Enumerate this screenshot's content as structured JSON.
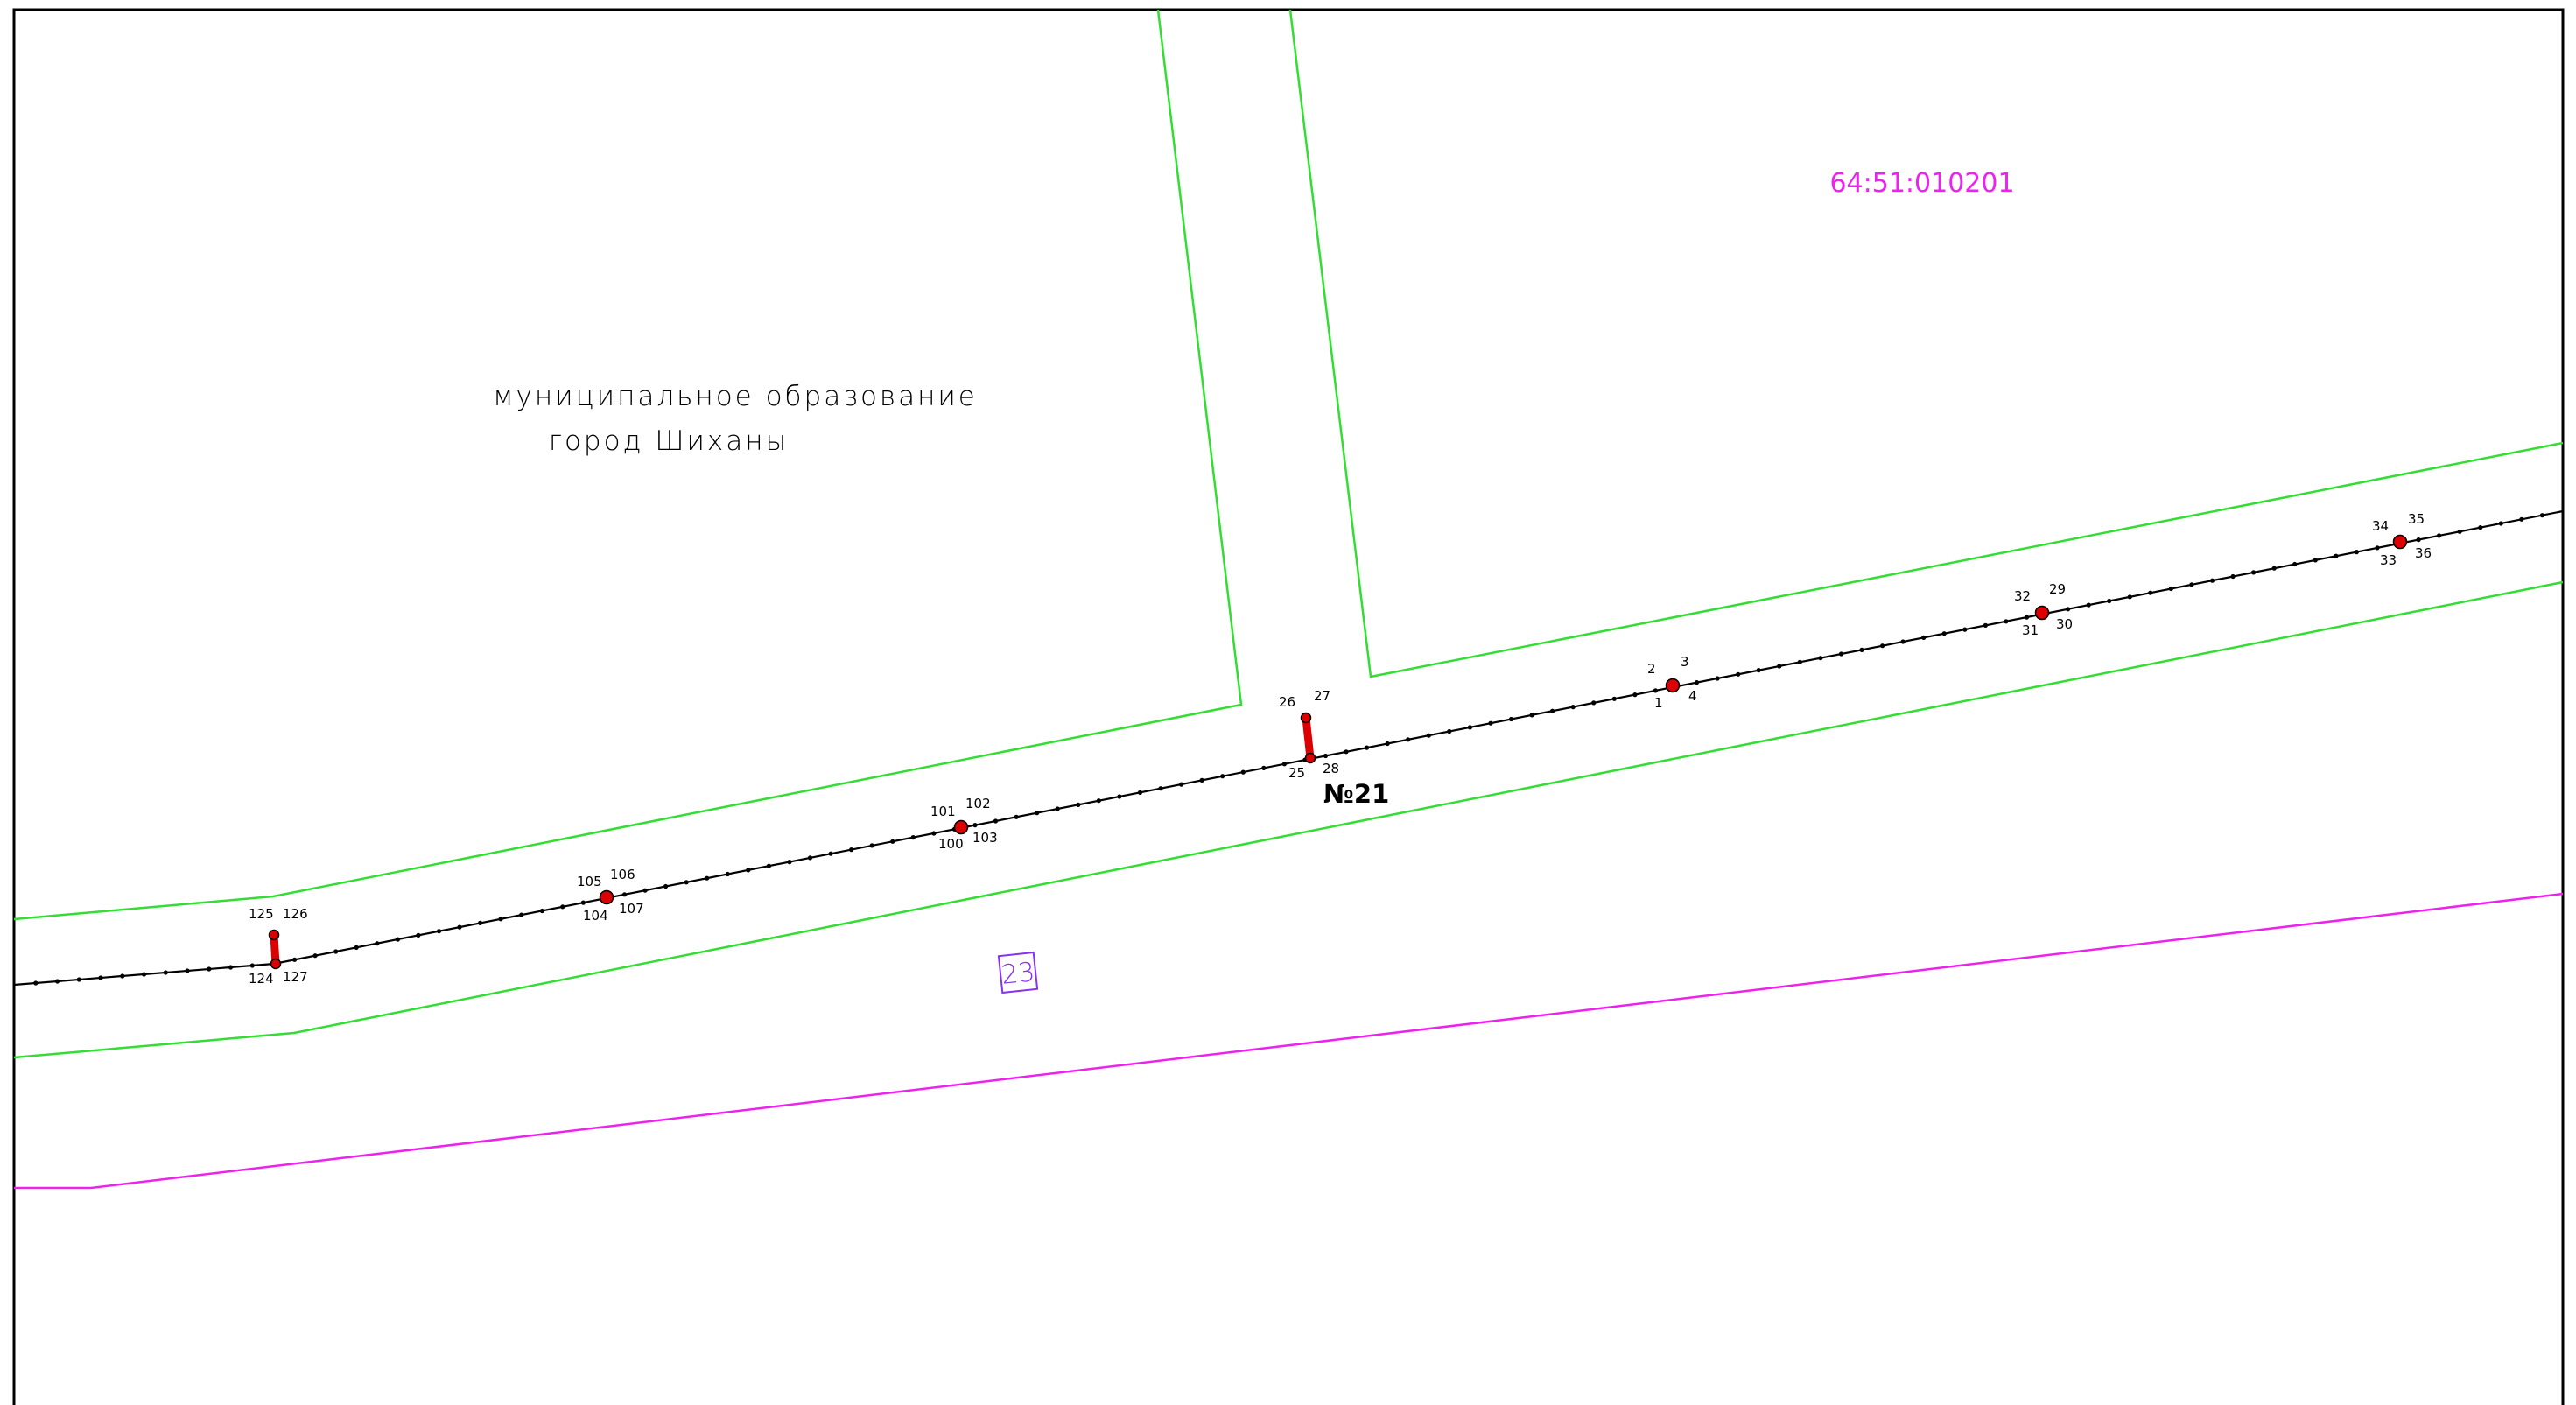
{
  "region_label": {
    "line1": "муниципальное образование",
    "line2": "город Шиханы"
  },
  "cadastral_number": "64:51:010201",
  "section_label": "№21",
  "parcel_number": "23",
  "point_labels": {
    "p1": "1",
    "p2": "2",
    "p3": "3",
    "p4": "4",
    "p25": "25",
    "p26": "26",
    "p27": "27",
    "p28": "28",
    "p29": "29",
    "p30": "30",
    "p31": "31",
    "p32": "32",
    "p33": "33",
    "p34": "34",
    "p35": "35",
    "p36": "36",
    "p100": "100",
    "p101": "101",
    "p102": "102",
    "p103": "103",
    "p104": "104",
    "p105": "105",
    "p106": "106",
    "p107": "107",
    "p124": "124",
    "p125": "125",
    "p126": "126",
    "p127": "127"
  },
  "colors": {
    "parcel_boundary": "#33dd33",
    "cadastral_boundary": "#ee22ee",
    "cadastral_text": "#ee22ee",
    "parcel_tag": "#8833ee",
    "route_line": "#000000",
    "survey_point": "#dd0000",
    "frame": "#000000"
  }
}
